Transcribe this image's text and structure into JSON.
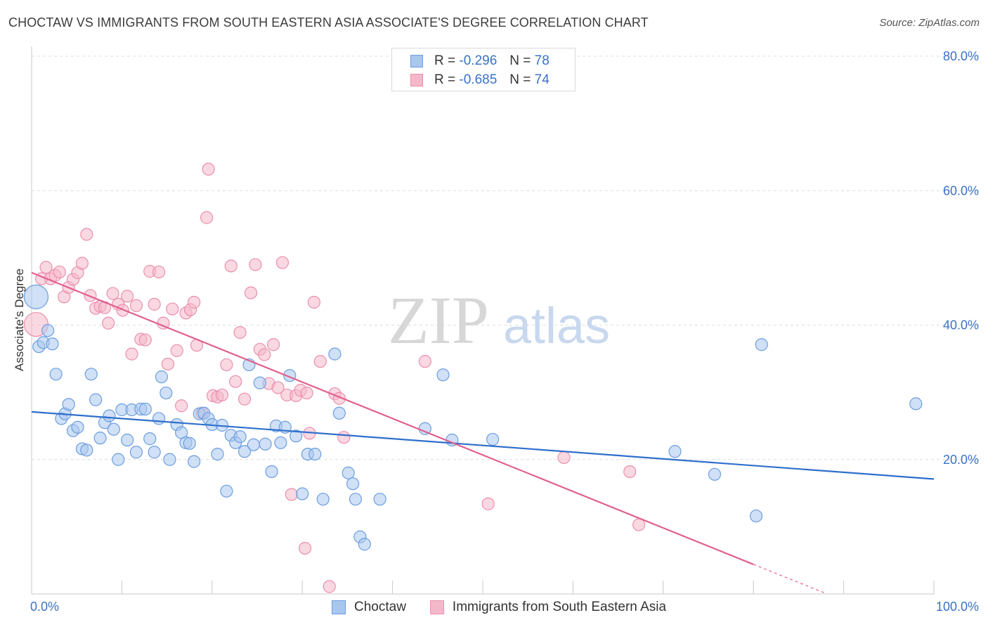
{
  "title": "CHOCTAW VS IMMIGRANTS FROM SOUTH EASTERN ASIA ASSOCIATE'S DEGREE CORRELATION CHART",
  "source": "Source: ZipAtlas.com",
  "watermark": {
    "zip": "ZIP",
    "atlas": "atlas"
  },
  "legend_top": [
    {
      "r_label": "R =",
      "r_value": "-0.296",
      "n_label": "N =",
      "n_value": "78"
    },
    {
      "r_label": "R =",
      "r_value": "-0.685",
      "n_label": "N =",
      "n_value": "74"
    }
  ],
  "colors": {
    "blue_fill": "#a9c6ee",
    "blue_stroke": "#6b9ee0",
    "blue_line": "#2f6fcc",
    "pink_fill": "#f5b8cb",
    "pink_stroke": "#ea8fac",
    "pink_line": "#e0608e",
    "grid": "#dcdcdc",
    "tick_label": "#3a72c8"
  },
  "chart_data": {
    "type": "scatter",
    "title": "CHOCTAW VS IMMIGRANTS FROM SOUTH EASTERN ASIA ASSOCIATE'S DEGREE CORRELATION CHART",
    "xlabel": "",
    "ylabel": "Associate's Degree",
    "xlim": [
      0,
      100
    ],
    "ylim": [
      0,
      80
    ],
    "x_tick_labels": [
      "0.0%",
      "100.0%"
    ],
    "y_ticks": [
      20,
      40,
      60,
      80
    ],
    "y_tick_labels": [
      "20.0%",
      "40.0%",
      "60.0%",
      "80.0%"
    ],
    "grid": true,
    "legend_placement": "top-center and bottom",
    "series": [
      {
        "name": "Choctaw",
        "r": -0.296,
        "n": 78,
        "trend": [
          [
            0,
            27.1
          ],
          [
            100,
            17.1
          ]
        ],
        "points": [
          [
            0.5,
            44.2
          ],
          [
            0.8,
            36.8
          ],
          [
            1.3,
            37.4
          ],
          [
            1.8,
            39.2
          ],
          [
            2.3,
            37.2
          ],
          [
            2.7,
            32.7
          ],
          [
            3.3,
            26.1
          ],
          [
            3.7,
            26.8
          ],
          [
            4.1,
            28.2
          ],
          [
            4.6,
            24.3
          ],
          [
            5.1,
            24.8
          ],
          [
            5.6,
            21.6
          ],
          [
            6.1,
            21.4
          ],
          [
            6.6,
            32.7
          ],
          [
            7.1,
            28.9
          ],
          [
            7.6,
            23.2
          ],
          [
            8.1,
            25.5
          ],
          [
            8.6,
            26.5
          ],
          [
            9.1,
            24.5
          ],
          [
            9.6,
            20.0
          ],
          [
            10.0,
            27.4
          ],
          [
            10.6,
            22.9
          ],
          [
            11.1,
            27.4
          ],
          [
            11.6,
            21.1
          ],
          [
            12.1,
            27.5
          ],
          [
            12.6,
            27.5
          ],
          [
            13.1,
            23.1
          ],
          [
            13.6,
            21.1
          ],
          [
            14.1,
            26.1
          ],
          [
            14.4,
            32.3
          ],
          [
            14.9,
            29.9
          ],
          [
            15.3,
            20.0
          ],
          [
            16.1,
            25.2
          ],
          [
            16.6,
            24.0
          ],
          [
            17.1,
            22.5
          ],
          [
            17.5,
            22.4
          ],
          [
            18.0,
            19.7
          ],
          [
            18.6,
            26.8
          ],
          [
            19.1,
            26.9
          ],
          [
            19.6,
            26.1
          ],
          [
            20.0,
            25.2
          ],
          [
            20.6,
            20.8
          ],
          [
            21.1,
            25.1
          ],
          [
            21.6,
            15.3
          ],
          [
            22.1,
            23.6
          ],
          [
            22.6,
            22.5
          ],
          [
            23.1,
            23.4
          ],
          [
            23.6,
            21.2
          ],
          [
            24.1,
            34.1
          ],
          [
            24.6,
            22.2
          ],
          [
            25.3,
            31.4
          ],
          [
            25.9,
            22.3
          ],
          [
            26.6,
            18.2
          ],
          [
            27.1,
            25.0
          ],
          [
            27.6,
            22.5
          ],
          [
            28.1,
            24.8
          ],
          [
            28.6,
            32.5
          ],
          [
            29.3,
            23.5
          ],
          [
            30.0,
            14.9
          ],
          [
            30.6,
            20.8
          ],
          [
            31.4,
            20.8
          ],
          [
            32.3,
            14.1
          ],
          [
            33.6,
            35.7
          ],
          [
            34.1,
            26.9
          ],
          [
            35.1,
            18.0
          ],
          [
            35.6,
            16.4
          ],
          [
            35.9,
            14.1
          ],
          [
            36.4,
            8.5
          ],
          [
            36.9,
            7.4
          ],
          [
            38.6,
            14.1
          ],
          [
            43.6,
            24.6
          ],
          [
            45.6,
            32.6
          ],
          [
            46.6,
            22.9
          ],
          [
            51.1,
            23.0
          ],
          [
            71.3,
            21.2
          ],
          [
            75.7,
            17.8
          ],
          [
            80.3,
            11.6
          ],
          [
            80.9,
            37.1
          ],
          [
            98.0,
            28.3
          ]
        ]
      },
      {
        "name": "Immigrants from South Eastern Asia",
        "r": -0.685,
        "n": 74,
        "trend": [
          [
            0,
            47.8
          ],
          [
            80,
            4.4
          ]
        ],
        "trend_dashed": [
          [
            80,
            4.4
          ],
          [
            88,
            0.1
          ]
        ],
        "points": [
          [
            0.5,
            40.1
          ],
          [
            1.1,
            46.9
          ],
          [
            1.6,
            48.6
          ],
          [
            2.1,
            46.9
          ],
          [
            2.6,
            47.4
          ],
          [
            3.1,
            47.9
          ],
          [
            3.6,
            44.2
          ],
          [
            4.1,
            45.6
          ],
          [
            4.6,
            46.8
          ],
          [
            5.1,
            47.8
          ],
          [
            5.6,
            49.2
          ],
          [
            6.1,
            53.5
          ],
          [
            6.5,
            44.4
          ],
          [
            7.1,
            42.5
          ],
          [
            7.6,
            42.8
          ],
          [
            8.1,
            42.6
          ],
          [
            8.5,
            40.3
          ],
          [
            9.0,
            44.7
          ],
          [
            9.6,
            43.1
          ],
          [
            10.1,
            42.2
          ],
          [
            10.6,
            44.3
          ],
          [
            11.1,
            35.7
          ],
          [
            11.6,
            42.9
          ],
          [
            12.1,
            37.9
          ],
          [
            12.6,
            37.8
          ],
          [
            13.1,
            48.0
          ],
          [
            13.6,
            43.1
          ],
          [
            14.1,
            47.9
          ],
          [
            14.6,
            40.3
          ],
          [
            15.1,
            34.2
          ],
          [
            15.6,
            42.4
          ],
          [
            16.1,
            36.2
          ],
          [
            16.6,
            28.0
          ],
          [
            17.1,
            41.8
          ],
          [
            17.6,
            42.3
          ],
          [
            18.0,
            43.4
          ],
          [
            18.3,
            37.0
          ],
          [
            18.9,
            26.9
          ],
          [
            19.4,
            56.0
          ],
          [
            19.6,
            63.2
          ],
          [
            20.1,
            29.5
          ],
          [
            20.6,
            29.3
          ],
          [
            21.1,
            29.6
          ],
          [
            21.6,
            34.1
          ],
          [
            22.1,
            48.8
          ],
          [
            22.6,
            31.6
          ],
          [
            23.1,
            38.9
          ],
          [
            23.6,
            29.0
          ],
          [
            24.3,
            44.8
          ],
          [
            24.8,
            49.0
          ],
          [
            25.3,
            36.4
          ],
          [
            25.8,
            35.6
          ],
          [
            26.3,
            31.3
          ],
          [
            26.8,
            37.1
          ],
          [
            27.3,
            30.7
          ],
          [
            27.8,
            49.3
          ],
          [
            28.3,
            29.6
          ],
          [
            28.8,
            14.8
          ],
          [
            29.3,
            29.5
          ],
          [
            29.8,
            30.3
          ],
          [
            30.3,
            6.8
          ],
          [
            30.8,
            23.9
          ],
          [
            31.3,
            43.4
          ],
          [
            32.0,
            34.6
          ],
          [
            33.0,
            1.1
          ],
          [
            33.6,
            29.8
          ],
          [
            34.1,
            29.1
          ],
          [
            34.6,
            23.3
          ],
          [
            43.6,
            34.6
          ],
          [
            50.6,
            13.4
          ],
          [
            59.0,
            20.3
          ],
          [
            66.3,
            18.2
          ],
          [
            67.3,
            10.3
          ],
          [
            30.5,
            29.9
          ]
        ]
      }
    ]
  },
  "legend_bottom": [
    {
      "label": "Choctaw"
    },
    {
      "label": "Immigrants from South Eastern Asia"
    }
  ]
}
